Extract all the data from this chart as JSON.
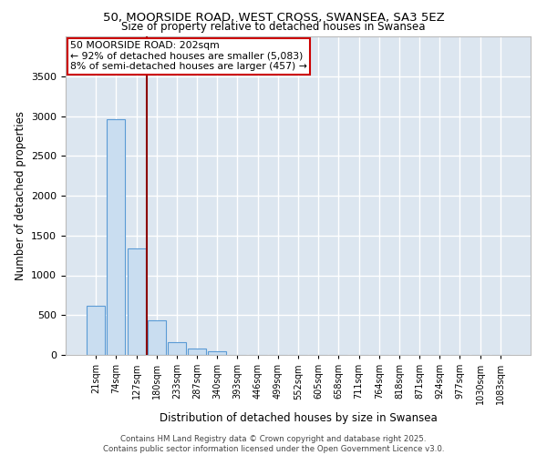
{
  "title1": "50, MOORSIDE ROAD, WEST CROSS, SWANSEA, SA3 5EZ",
  "title2": "Size of property relative to detached houses in Swansea",
  "xlabel": "Distribution of detached houses by size in Swansea",
  "ylabel": "Number of detached properties",
  "categories": [
    "21sqm",
    "74sqm",
    "127sqm",
    "180sqm",
    "233sqm",
    "287sqm",
    "340sqm",
    "393sqm",
    "446sqm",
    "499sqm",
    "552sqm",
    "605sqm",
    "658sqm",
    "711sqm",
    "764sqm",
    "818sqm",
    "871sqm",
    "924sqm",
    "977sqm",
    "1030sqm",
    "1083sqm"
  ],
  "values": [
    620,
    2960,
    1340,
    430,
    165,
    80,
    45,
    0,
    0,
    0,
    0,
    0,
    0,
    0,
    0,
    0,
    0,
    0,
    0,
    0,
    0
  ],
  "bar_color": "#c9ddf0",
  "bar_edge_color": "#5b9bd5",
  "plot_bg_color": "#dce6f0",
  "fig_bg_color": "#ffffff",
  "grid_color": "#ffffff",
  "red_line_x": 2.5,
  "annotation_text": "50 MOORSIDE ROAD: 202sqm\n← 92% of detached houses are smaller (5,083)\n8% of semi-detached houses are larger (457) →",
  "ylim": [
    0,
    4000
  ],
  "yticks": [
    0,
    500,
    1000,
    1500,
    2000,
    2500,
    3000,
    3500
  ],
  "footer1": "Contains HM Land Registry data © Crown copyright and database right 2025.",
  "footer2": "Contains public sector information licensed under the Open Government Licence v3.0."
}
